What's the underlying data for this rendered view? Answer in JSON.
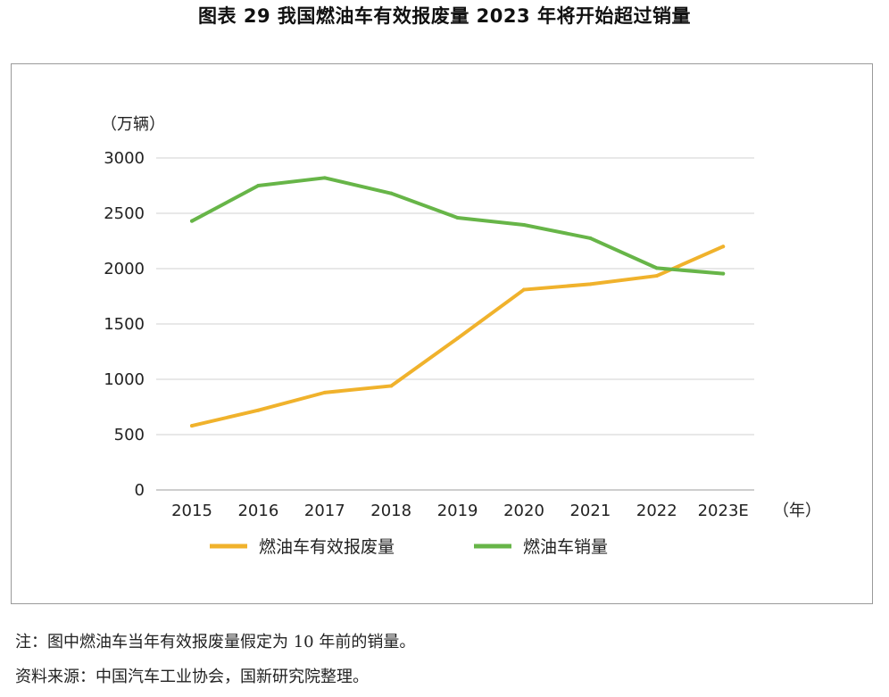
{
  "title": "图表 29  我国燃油车有效报废量 2023 年将开始超过销量",
  "notes": {
    "note": "注：图中燃油车当年有效报废量假定为 10 年前的销量。",
    "source": "资料来源：中国汽车工业协会，国新研究院整理。"
  },
  "chart_data": {
    "type": "line",
    "title": "",
    "ylabel": "（万辆）",
    "xlabel": "（年）",
    "ylim": [
      0,
      3000
    ],
    "yticks": [
      0,
      500,
      1000,
      1500,
      2000,
      2500,
      3000
    ],
    "categories": [
      "2015",
      "2016",
      "2017",
      "2018",
      "2019",
      "2020",
      "2021",
      "2022",
      "2023E"
    ],
    "grid": true,
    "legend_position": "bottom",
    "series": [
      {
        "name": "燃油车有效报废量",
        "color": "#F0B22C",
        "values": [
          580,
          720,
          880,
          940,
          1370,
          1810,
          1860,
          1935,
          2200
        ]
      },
      {
        "name": "燃油车销量",
        "color": "#67B548",
        "values": [
          2430,
          2750,
          2820,
          2680,
          2460,
          2395,
          2275,
          2005,
          1955
        ]
      }
    ]
  }
}
